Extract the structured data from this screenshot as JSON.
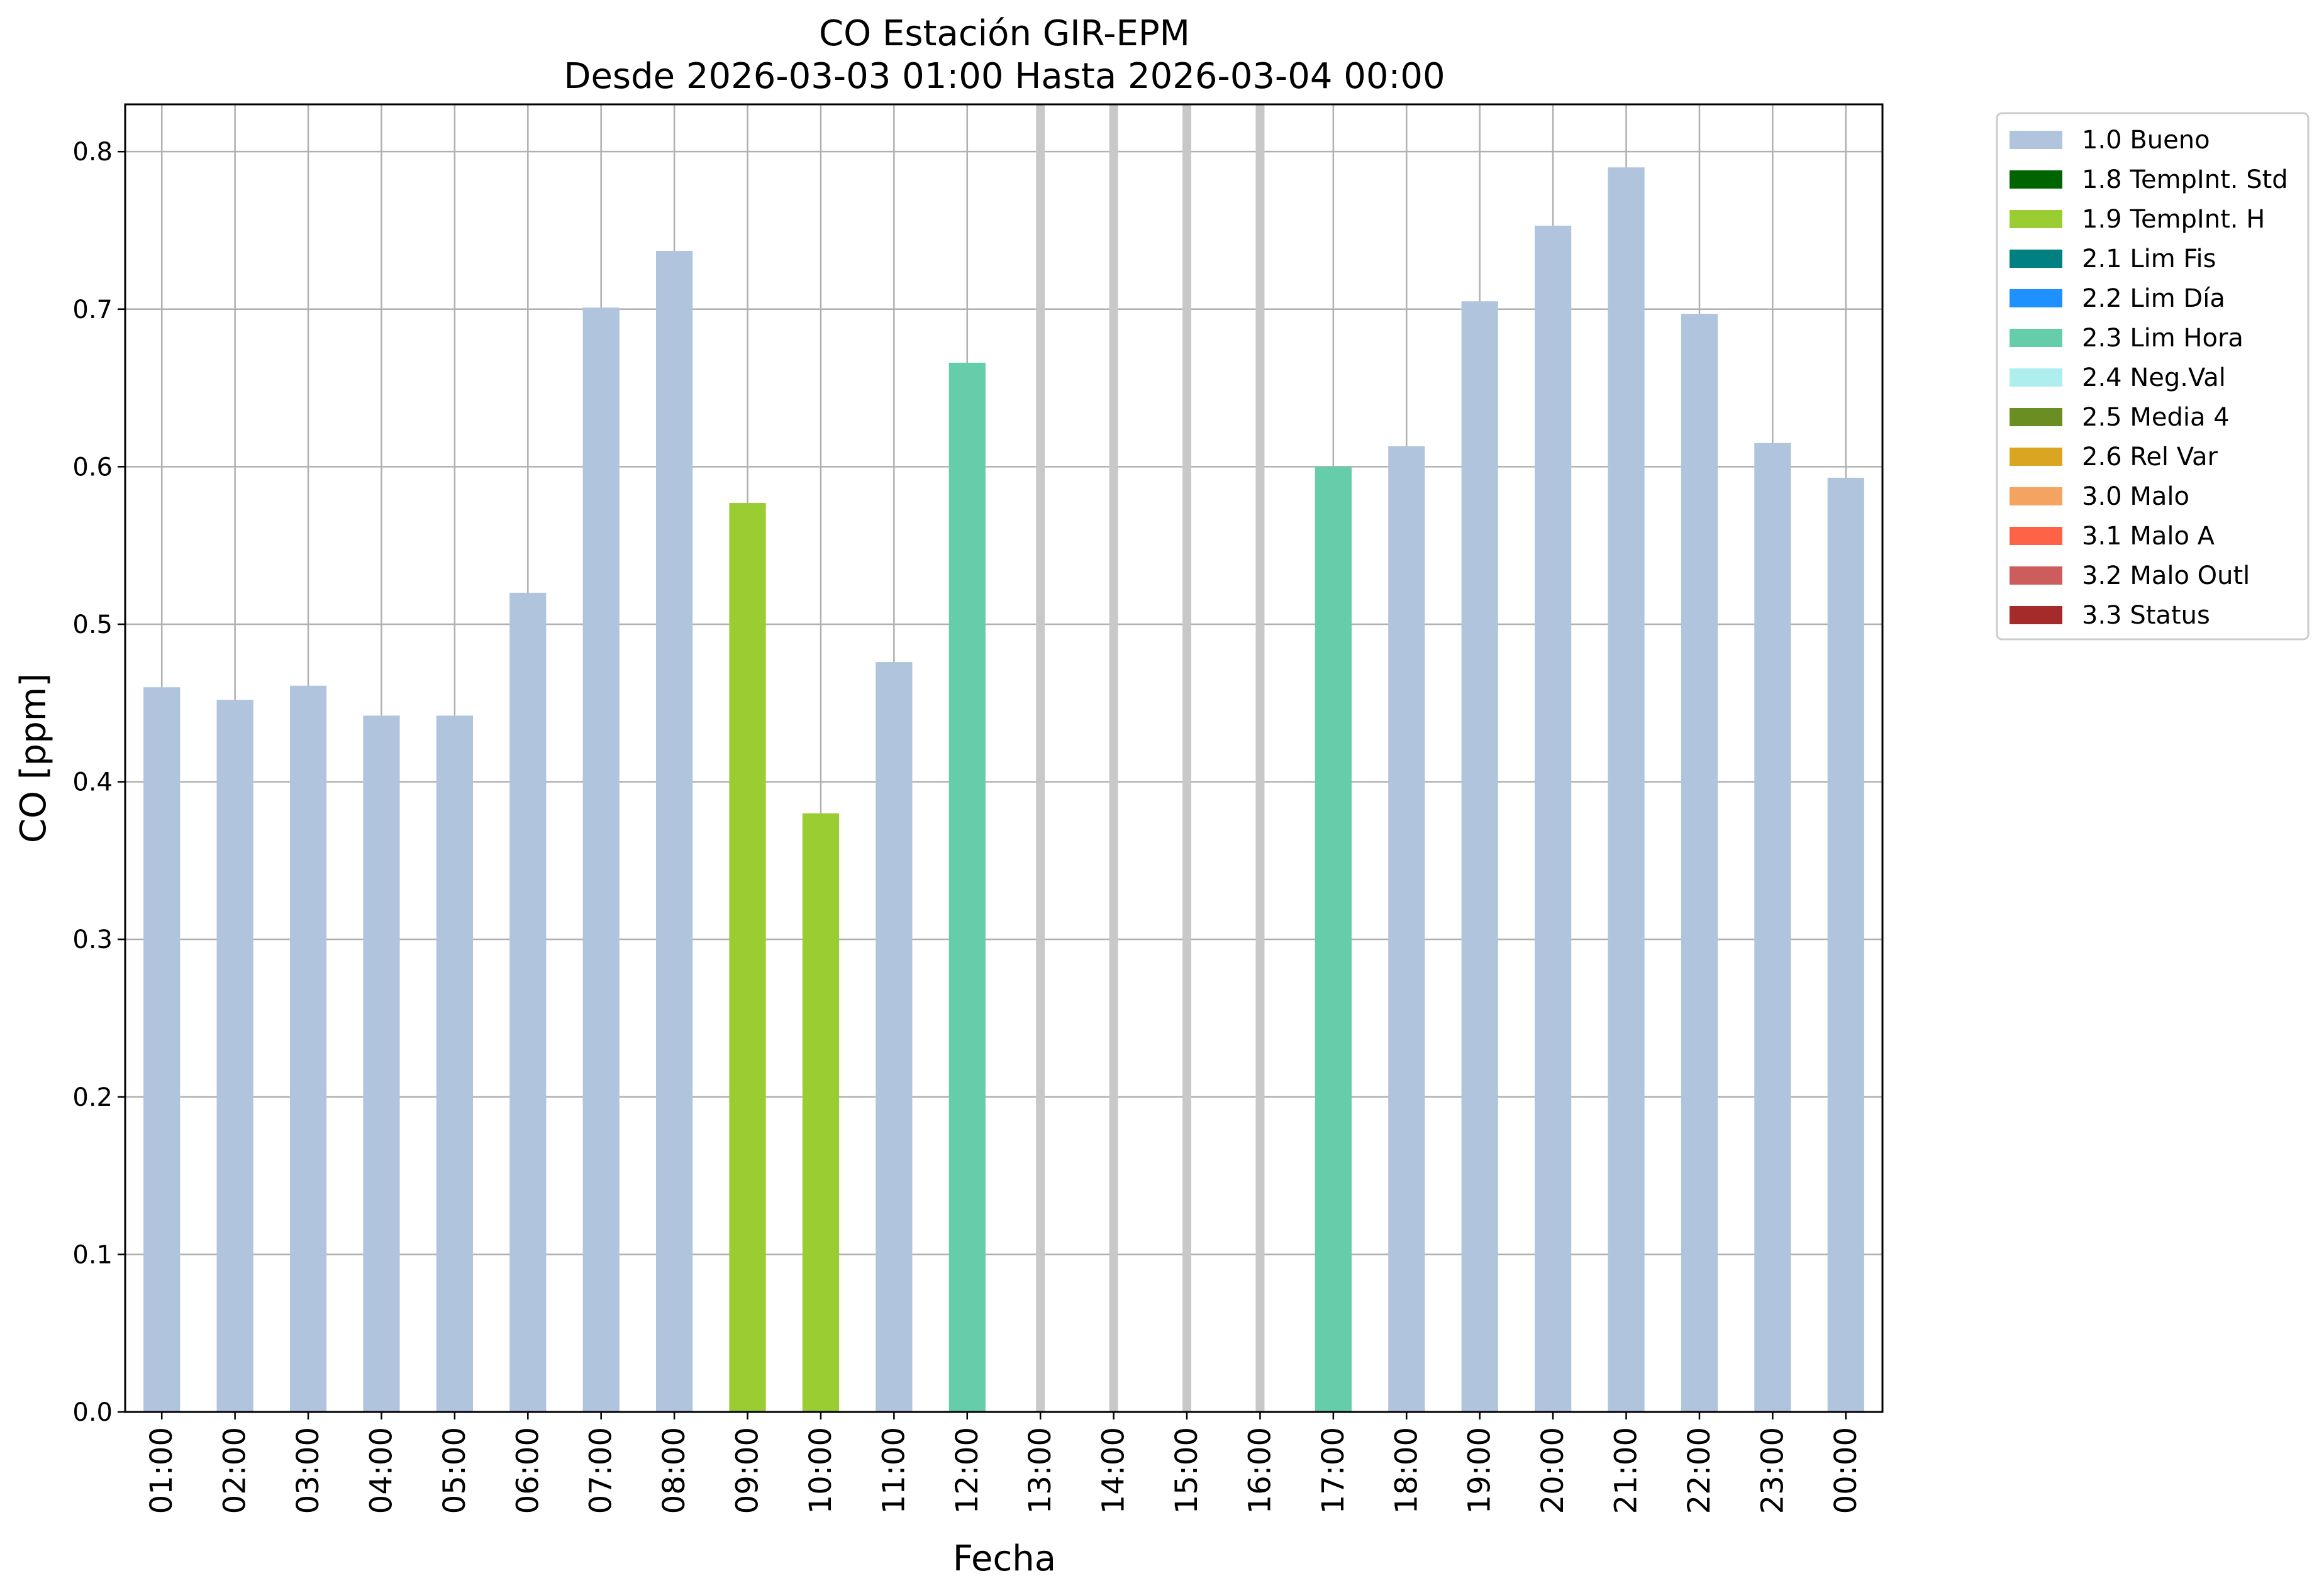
{
  "chart_data": {
    "type": "bar",
    "title": "CO Estación GIR-EPM",
    "subtitle": "Desde 2026-03-03 01:00 Hasta 2026-03-04 00:00",
    "xlabel": "Fecha",
    "ylabel": "CO [ppm]",
    "ylim": [
      0,
      0.83
    ],
    "yticks": [
      "0.0",
      "0.1",
      "0.2",
      "0.3",
      "0.4",
      "0.5",
      "0.6",
      "0.7",
      "0.8"
    ],
    "grid": true,
    "legend_position": "outside-right",
    "categories": [
      "01:00",
      "02:00",
      "03:00",
      "04:00",
      "05:00",
      "06:00",
      "07:00",
      "08:00",
      "09:00",
      "10:00",
      "11:00",
      "12:00",
      "13:00",
      "14:00",
      "15:00",
      "16:00",
      "17:00",
      "18:00",
      "19:00",
      "20:00",
      "21:00",
      "22:00",
      "23:00",
      "00:00"
    ],
    "values": [
      0.46,
      0.452,
      0.461,
      0.442,
      0.442,
      0.52,
      0.701,
      0.737,
      0.577,
      0.38,
      0.476,
      0.666,
      null,
      null,
      null,
      null,
      0.6,
      0.613,
      0.705,
      0.753,
      0.79,
      0.697,
      0.615,
      0.593
    ],
    "flags": [
      "1.0 Bueno",
      "1.0 Bueno",
      "1.0 Bueno",
      "1.0 Bueno",
      "1.0 Bueno",
      "1.0 Bueno",
      "1.0 Bueno",
      "1.0 Bueno",
      "1.9 TempInt. H",
      "1.9 TempInt. H",
      "1.0 Bueno",
      "2.3 Lim Hora",
      null,
      null,
      null,
      null,
      "2.3 Lim Hora",
      "1.0 Bueno",
      "1.0 Bueno",
      "1.0 Bueno",
      "1.0 Bueno",
      "1.0 Bueno",
      "1.0 Bueno",
      "1.0 Bueno"
    ],
    "missing_marker_color": "#c8c8c8",
    "legend": [
      {
        "label": "1.0 Bueno",
        "color": "#b0c4de"
      },
      {
        "label": "1.8 TempInt. Std",
        "color": "#006400"
      },
      {
        "label": "1.9 TempInt. H",
        "color": "#9acd32"
      },
      {
        "label": "2.1 Lim Fis",
        "color": "#008080"
      },
      {
        "label": "2.2 Lim Día",
        "color": "#1e90ff"
      },
      {
        "label": "2.3 Lim Hora",
        "color": "#66cdaa"
      },
      {
        "label": "2.4 Neg.Val",
        "color": "#afeeee"
      },
      {
        "label": "2.5 Media 4",
        "color": "#6b8e23"
      },
      {
        "label": "2.6 Rel Var",
        "color": "#daa520"
      },
      {
        "label": "3.0 Malo",
        "color": "#f4a460"
      },
      {
        "label": "3.1 Malo A",
        "color": "#ff6347"
      },
      {
        "label": "3.2 Malo Outl",
        "color": "#cd5c5c"
      },
      {
        "label": "3.3 Status",
        "color": "#a52a2a"
      }
    ]
  }
}
